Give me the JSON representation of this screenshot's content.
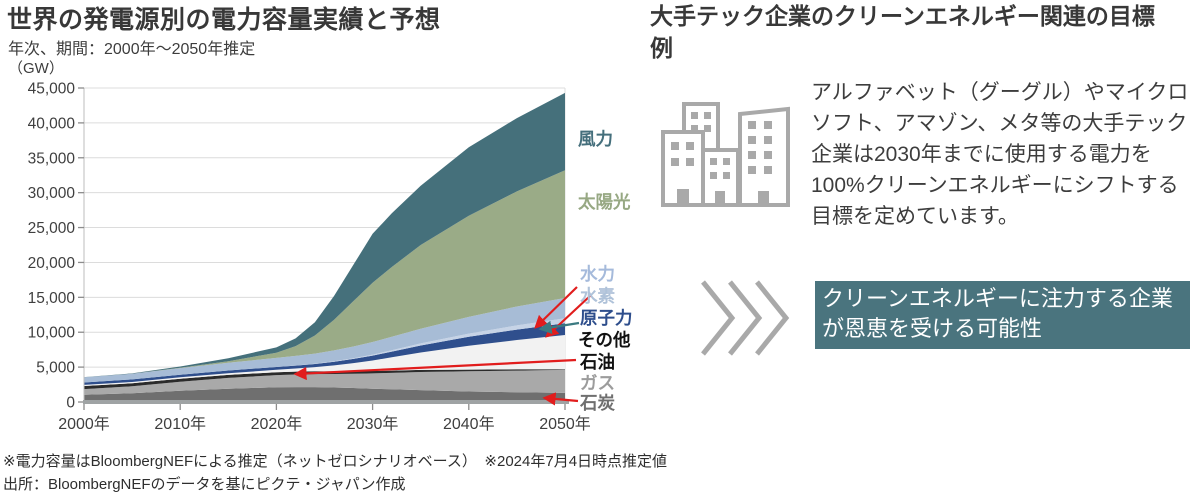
{
  "left_panel": {
    "title": "世界の発電源別の電力容量実績と予想",
    "subtitle": "年次、期間：2000年～2050年推定",
    "unit_label": "（GW）"
  },
  "chart_data": {
    "type": "area",
    "stacked": true,
    "title": "世界の発電源別の電力容量実績と予想",
    "ylabel": "（GW）",
    "ylim": [
      0,
      45000
    ],
    "y_ticks": [
      0,
      5000,
      10000,
      15000,
      20000,
      25000,
      30000,
      35000,
      40000,
      45000
    ],
    "y_tick_labels": [
      "0",
      "5,000",
      "10,000",
      "15,000",
      "20,000",
      "25,000",
      "30,000",
      "35,000",
      "40,000",
      "45,000"
    ],
    "grid": "horizontal",
    "x": [
      2000,
      2005,
      2010,
      2015,
      2020,
      2022,
      2024,
      2026,
      2028,
      2030,
      2032,
      2035,
      2040,
      2045,
      2050
    ],
    "x_tick_years": [
      2000,
      2010,
      2020,
      2030,
      2040,
      2050
    ],
    "x_tick_labels": [
      "2000年",
      "2010年",
      "2020年",
      "2030年",
      "2040年",
      "2050年"
    ],
    "legend_position": "right",
    "series": [
      {
        "key": "coal",
        "label": "石炭",
        "color": "#6f6f6f",
        "label_color": "#6f6f6f",
        "values": [
          1050,
          1250,
          1600,
          1900,
          2100,
          2140,
          2130,
          2080,
          2000,
          1900,
          1820,
          1700,
          1500,
          1400,
          1300
        ]
      },
      {
        "key": "gas",
        "label": "ガス",
        "color": "#a9a9a9",
        "label_color": "#9c9c9c",
        "values": [
          800,
          1000,
          1300,
          1550,
          1750,
          1800,
          1870,
          1930,
          2050,
          2200,
          2350,
          2600,
          2900,
          3100,
          3300
        ]
      },
      {
        "key": "oil",
        "label": "石油",
        "color": "#2b2b2b",
        "label_color": "#111111",
        "values": [
          450,
          450,
          440,
          430,
          420,
          415,
          405,
          390,
          370,
          350,
          330,
          300,
          250,
          180,
          100
        ]
      },
      {
        "key": "other",
        "label": "その他",
        "color": "#f2f2f2",
        "label_color": "#111111",
        "values": [
          150,
          170,
          200,
          250,
          350,
          450,
          600,
          850,
          1150,
          1500,
          1900,
          2500,
          3400,
          4200,
          4900
        ]
      },
      {
        "key": "nuclear",
        "label": "原子力",
        "color": "#2f4f8d",
        "label_color": "#2e4e8c",
        "values": [
          350,
          370,
          375,
          390,
          400,
          415,
          440,
          520,
          600,
          700,
          820,
          1000,
          1300,
          1500,
          1700
        ]
      },
      {
        "key": "hydrogen",
        "label": "水素",
        "color": "#c6d3e6",
        "label_color": "#afc2d9",
        "values": [
          0,
          0,
          0,
          0,
          0,
          10,
          40,
          70,
          110,
          150,
          210,
          300,
          450,
          600,
          700
        ]
      },
      {
        "key": "hydro",
        "label": "水力",
        "color": "#a7bcd6",
        "label_color": "#a5badb",
        "values": [
          750,
          800,
          950,
          1100,
          1300,
          1380,
          1450,
          1560,
          1680,
          1800,
          1920,
          2100,
          2400,
          2700,
          2900
        ]
      },
      {
        "key": "solar",
        "label": "太陽光",
        "color": "#9aab87",
        "label_color": "#97a883",
        "values": [
          1,
          5,
          40,
          230,
          750,
          1400,
          2600,
          4400,
          6500,
          8500,
          10000,
          12000,
          14500,
          16500,
          18300
        ]
      },
      {
        "key": "wind",
        "label": "風力",
        "color": "#45707b",
        "label_color": "#456f7c",
        "values": [
          17,
          60,
          180,
          420,
          750,
          1100,
          1900,
          3400,
          5200,
          7000,
          7700,
          8500,
          9800,
          10500,
          11100
        ]
      }
    ],
    "annotation_colors": {
      "arrow_red": "#e11d1d",
      "arrow_teal": "#3b7a81"
    }
  },
  "right_panel": {
    "title": "大手テック企業のクリーンエネルギー関連の目標例",
    "body": "アルファベット（グーグル）やマイクロソフト、アマゾン、メタ等の大手テック企業は2030年までに使用する電力を100%クリーンエネルギーにシフトする目標を定めています。",
    "callout": "クリーンエネルギーに注力する企業が恩恵を受ける可能性",
    "callout_bg": "#4a747e",
    "icons": {
      "buildings": "buildings-icon",
      "chevrons": "triple-chevron-right-icon",
      "icon_color": "#a9a9a9"
    }
  },
  "footnotes": [
    "※電力容量はBloombergNEFによる推定（ネットゼロシナリオベース）　※2024年7月4日時点推定値",
    "出所：BloombergNEFのデータを基にピクテ・ジャパン作成"
  ],
  "colors": {
    "title_text": "#383838",
    "axis_text": "#3f3f3f",
    "grid_line": "#dcdcdc",
    "axis_line": "#9fa3a4"
  }
}
